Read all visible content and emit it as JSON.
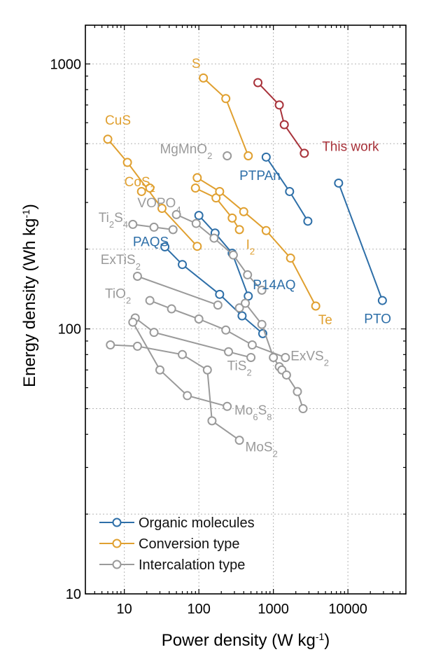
{
  "chart_data": {
    "type": "scatter",
    "xscale": "log",
    "yscale": "log",
    "xlabel": {
      "main": "Power density (W kg",
      "sup": "-1",
      "close": ")"
    },
    "ylabel": {
      "main": "Energy density (Wh kg",
      "sup": "-1",
      "close": ")"
    },
    "xlim": [
      3,
      60000
    ],
    "ylim": [
      10,
      1400
    ],
    "grid": true,
    "xticks": [
      {
        "value": 10,
        "label": "10"
      },
      {
        "value": 100,
        "label": "100"
      },
      {
        "value": 1000,
        "label": "1000"
      },
      {
        "value": 10000,
        "label": "10000"
      }
    ],
    "yticks": [
      {
        "value": 10,
        "label": "10"
      },
      {
        "value": 100,
        "label": "100"
      },
      {
        "value": 1000,
        "label": "1000"
      }
    ],
    "colors": {
      "organic": "#2e6fa8",
      "conversion": "#e0a030",
      "intercalation": "#9a9a9a",
      "this_work": "#a8323a",
      "axis": "#000000",
      "grid": "#b5b5b5"
    },
    "legend": {
      "placement": "bottom-left",
      "entries": [
        {
          "label": "Organic molecules",
          "color_key": "organic"
        },
        {
          "label": "Conversion type",
          "color_key": "conversion"
        },
        {
          "label": "Intercalation type",
          "color_key": "intercalation"
        }
      ]
    },
    "series": [
      {
        "name": "This work",
        "label_parts": [
          {
            "t": "This work"
          }
        ],
        "group": "this_work",
        "label_anchor": [
          4500,
          470
        ],
        "points": [
          [
            620,
            850
          ],
          [
            1200,
            700
          ],
          [
            1400,
            590
          ],
          [
            2600,
            460
          ]
        ]
      },
      {
        "name": "PTPAn",
        "label_parts": [
          {
            "t": "PTPAn"
          }
        ],
        "group": "organic",
        "label_anchor": [
          350,
          365
        ],
        "points": [
          [
            800,
            445
          ],
          [
            1650,
            330
          ],
          [
            2900,
            255
          ]
        ]
      },
      {
        "name": "PTO",
        "label_parts": [
          {
            "t": "PTO"
          }
        ],
        "group": "organic",
        "label_anchor": [
          16500,
          105
        ],
        "points": [
          [
            7500,
            355
          ],
          [
            29000,
            128
          ]
        ]
      },
      {
        "name": "PAQS",
        "label_parts": [
          {
            "t": "PAQS"
          }
        ],
        "group": "organic",
        "label_anchor": [
          13,
          205
        ],
        "points": [
          [
            35,
            204
          ],
          [
            60,
            175
          ],
          [
            190,
            135
          ],
          [
            380,
            112
          ],
          [
            720,
            96
          ]
        ]
      },
      {
        "name": "P14AQ",
        "label_parts": [
          {
            "t": "P14AQ"
          }
        ],
        "group": "organic",
        "label_anchor": [
          530,
          141
        ],
        "points": [
          [
            100,
            268
          ],
          [
            165,
            230
          ],
          [
            280,
            193
          ],
          [
            460,
            133
          ]
        ]
      },
      {
        "name": "S",
        "label_parts": [
          {
            "t": "S"
          }
        ],
        "group": "conversion",
        "label_anchor": [
          80,
          965
        ],
        "points": [
          [
            115,
            885
          ],
          [
            230,
            740
          ],
          [
            460,
            450
          ]
        ]
      },
      {
        "name": "CuS",
        "label_parts": [
          {
            "t": "CuS"
          }
        ],
        "group": "conversion",
        "label_anchor": [
          5.5,
          590
        ],
        "points": [
          [
            6,
            520
          ],
          [
            11,
            425
          ],
          [
            32,
            285
          ],
          [
            95,
            205
          ]
        ]
      },
      {
        "name": "CoS2",
        "label_parts": [
          {
            "t": "CoS"
          },
          {
            "t": "2",
            "sub": true
          }
        ],
        "group": "conversion",
        "label_anchor": [
          10,
          345
        ],
        "points": [
          [
            17,
            330
          ],
          [
            22,
            340
          ]
        ]
      },
      {
        "name": "I2",
        "label_parts": [
          {
            "t": "I"
          },
          {
            "t": "2",
            "sub": true
          }
        ],
        "group": "conversion",
        "label_anchor": [
          430,
          200
        ],
        "points": [
          [
            90,
            340
          ],
          [
            170,
            312
          ],
          [
            280,
            262
          ],
          [
            350,
            237
          ]
        ]
      },
      {
        "name": "Te",
        "label_parts": [
          {
            "t": "Te"
          }
        ],
        "group": "conversion",
        "label_anchor": [
          4000,
          104
        ],
        "points": [
          [
            95,
            372
          ],
          [
            190,
            330
          ],
          [
            400,
            277
          ],
          [
            800,
            235
          ],
          [
            1700,
            185
          ],
          [
            3700,
            122
          ]
        ]
      },
      {
        "name": "MgMnO2",
        "label_parts": [
          {
            "t": "MgMnO"
          },
          {
            "t": "2",
            "sub": true
          }
        ],
        "group": "intercalation",
        "label_anchor": [
          30,
          460
        ],
        "points": [
          [
            240,
            450
          ]
        ]
      },
      {
        "name": "VOPO4",
        "label_parts": [
          {
            "t": "VOPO"
          },
          {
            "t": "4",
            "sub": true
          }
        ],
        "group": "intercalation",
        "label_anchor": [
          15,
          288
        ],
        "points": [
          [
            50,
            270
          ],
          [
            92,
            250
          ],
          [
            160,
            220
          ],
          [
            290,
            190
          ],
          [
            450,
            160
          ],
          [
            700,
            140
          ]
        ]
      },
      {
        "name": "Ti2S4",
        "label_parts": [
          {
            "t": "Ti"
          },
          {
            "t": "2",
            "sub": true
          },
          {
            "t": "S"
          },
          {
            "t": "4",
            "sub": true
          }
        ],
        "group": "intercalation",
        "label_anchor": [
          4.5,
          253
        ],
        "points": [
          [
            13,
            248
          ],
          [
            25,
            242
          ],
          [
            45,
            237
          ]
        ]
      },
      {
        "name": "ExTiS2",
        "label_parts": [
          {
            "t": "ExTiS"
          },
          {
            "t": "2",
            "sub": true
          }
        ],
        "group": "intercalation",
        "label_anchor": [
          4.8,
          176
        ],
        "points": [
          [
            15,
            158
          ],
          [
            180,
            123
          ]
        ]
      },
      {
        "name": "TiO2",
        "label_parts": [
          {
            "t": "TiO"
          },
          {
            "t": "2",
            "sub": true
          }
        ],
        "group": "intercalation",
        "label_anchor": [
          5.5,
          131
        ],
        "points": [
          [
            22,
            128
          ],
          [
            43,
            119
          ],
          [
            100,
            109
          ],
          [
            230,
            99
          ],
          [
            520,
            87
          ],
          [
            1450,
            78
          ]
        ]
      },
      {
        "name": "TiS2",
        "label_parts": [
          {
            "t": "TiS"
          },
          {
            "t": "2",
            "sub": true
          }
        ],
        "group": "intercalation",
        "label_anchor": [
          240,
          70
        ],
        "points": [
          [
            14,
            110
          ],
          [
            25,
            97
          ],
          [
            250,
            82
          ],
          [
            500,
            78
          ]
        ]
      },
      {
        "name": "ExVS2",
        "label_parts": [
          {
            "t": "ExVS"
          },
          {
            "t": "2",
            "sub": true
          }
        ],
        "group": "intercalation",
        "label_anchor": [
          1700,
          76
        ],
        "points": [
          [
            350,
            120
          ],
          [
            420,
            125
          ],
          [
            700,
            104
          ],
          [
            1000,
            78
          ],
          [
            1200,
            72
          ],
          [
            1300,
            70
          ],
          [
            1500,
            67
          ],
          [
            2100,
            58
          ],
          [
            2500,
            50
          ]
        ]
      },
      {
        "name": "Mo6S8",
        "label_parts": [
          {
            "t": "Mo"
          },
          {
            "t": "6",
            "sub": true
          },
          {
            "t": "S"
          },
          {
            "t": "8",
            "sub": true
          }
        ],
        "group": "intercalation",
        "label_anchor": [
          300,
          47.5
        ],
        "points": [
          [
            13,
            106
          ],
          [
            30,
            70
          ],
          [
            70,
            56
          ],
          [
            240,
            51
          ]
        ]
      },
      {
        "name": "MoS2",
        "label_parts": [
          {
            "t": "MoS"
          },
          {
            "t": "2",
            "sub": true
          }
        ],
        "group": "intercalation",
        "label_anchor": [
          420,
          34.5
        ],
        "points": [
          [
            6.5,
            87
          ],
          [
            15,
            86
          ],
          [
            60,
            80
          ],
          [
            130,
            70
          ],
          [
            150,
            45
          ],
          [
            350,
            38
          ]
        ]
      }
    ]
  }
}
